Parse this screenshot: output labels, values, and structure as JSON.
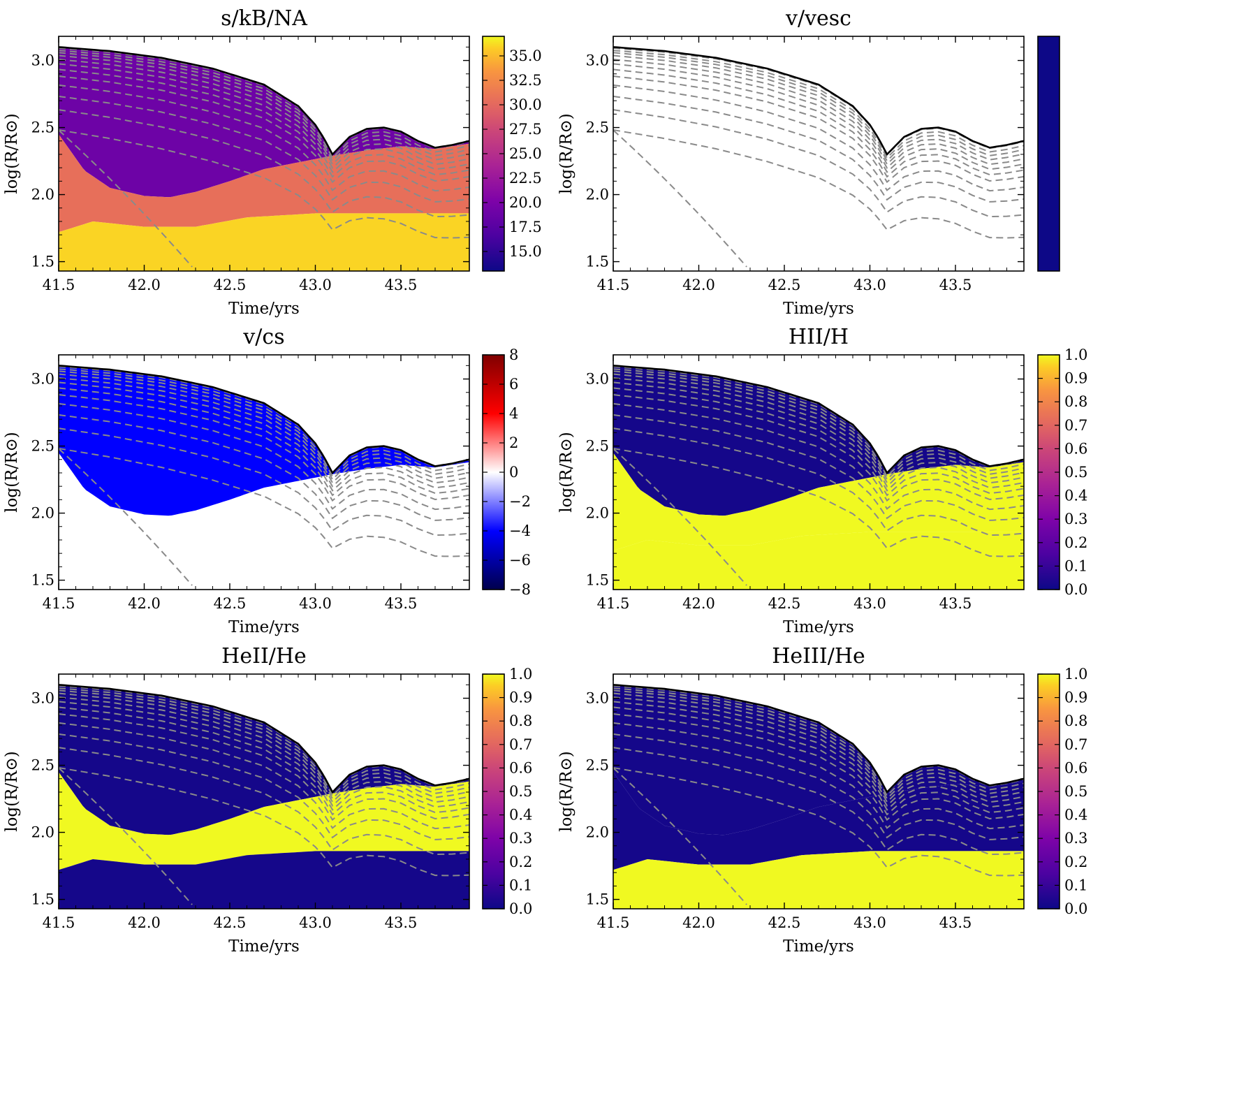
{
  "figure": {
    "xlabel": "Time/yrs",
    "ylabel": "log(R/R⊙)",
    "xlim": [
      41.5,
      43.9
    ],
    "ylim": [
      1.43,
      3.18
    ],
    "xticks": [
      41.5,
      42.0,
      42.5,
      43.0,
      43.5
    ],
    "yticks": [
      1.5,
      2.0,
      2.5,
      3.0
    ]
  },
  "chart_data": [
    {
      "type": "heatmap",
      "title": "s/kB/NA",
      "xlabel": "Time/yrs",
      "ylabel": "log(R/R⊙)",
      "colormap": "plasma",
      "colorbar": {
        "min": 13.0,
        "max": 37.0,
        "ticks": [
          15.0,
          17.5,
          20.0,
          22.5,
          25.0,
          27.5,
          30.0,
          32.5,
          35.0
        ],
        "labels": [
          "15.0",
          "17.5",
          "20.0",
          "22.5",
          "25.0",
          "27.5",
          "30.0",
          "32.5",
          "35.0"
        ]
      },
      "regions": {
        "outer": 19.0,
        "inner": 30.5,
        "core": 36.0
      }
    },
    {
      "type": "heatmap",
      "title": "v/vesc",
      "xlabel": "Time/yrs",
      "ylabel": "log(R/R⊙)",
      "colormap": "plasma",
      "colorbar": {
        "min": 0,
        "max": 1,
        "ticks": [],
        "labels": []
      },
      "regions": {
        "outer": null,
        "inner": null,
        "core": null
      }
    },
    {
      "type": "heatmap",
      "title": "v/cs",
      "xlabel": "Time/yrs",
      "ylabel": "log(R/R⊙)",
      "colormap": "seismic",
      "colorbar": {
        "min": -8,
        "max": 8,
        "ticks": [
          -8,
          -6,
          -4,
          -2,
          0,
          2,
          4,
          6,
          8
        ],
        "labels": [
          "−8",
          "−6",
          "−4",
          "−2",
          "0",
          "2",
          "4",
          "6",
          "8"
        ]
      },
      "regions": {
        "outer": -4.0,
        "inner": null,
        "core": null
      }
    },
    {
      "type": "heatmap",
      "title": "HII/H",
      "xlabel": "Time/yrs",
      "ylabel": "log(R/R⊙)",
      "colormap": "plasma",
      "colorbar": {
        "min": 0.0,
        "max": 1.0,
        "ticks": [
          0.0,
          0.1,
          0.2,
          0.3,
          0.4,
          0.5,
          0.6,
          0.7,
          0.8,
          0.9,
          1.0
        ],
        "labels": [
          "0.0",
          "0.1",
          "0.2",
          "0.3",
          "0.4",
          "0.5",
          "0.6",
          "0.7",
          "0.8",
          "0.9",
          "1.0"
        ]
      },
      "regions": {
        "outer": 0.02,
        "inner": 1.0,
        "core": 1.0
      }
    },
    {
      "type": "heatmap",
      "title": "HeII/He",
      "xlabel": "Time/yrs",
      "ylabel": "log(R/R⊙)",
      "colormap": "plasma",
      "colorbar": {
        "min": 0.0,
        "max": 1.0,
        "ticks": [
          0.0,
          0.1,
          0.2,
          0.3,
          0.4,
          0.5,
          0.6,
          0.7,
          0.8,
          0.9,
          1.0
        ],
        "labels": [
          "0.0",
          "0.1",
          "0.2",
          "0.3",
          "0.4",
          "0.5",
          "0.6",
          "0.7",
          "0.8",
          "0.9",
          "1.0"
        ]
      },
      "regions": {
        "outer": 0.02,
        "inner": 1.0,
        "core": 0.02
      }
    },
    {
      "type": "heatmap",
      "title": "HeIII/He",
      "xlabel": "Time/yrs",
      "ylabel": "log(R/R⊙)",
      "colormap": "plasma",
      "colorbar": {
        "min": 0.0,
        "max": 1.0,
        "ticks": [
          0.0,
          0.1,
          0.2,
          0.3,
          0.4,
          0.5,
          0.6,
          0.7,
          0.8,
          0.9,
          1.0
        ],
        "labels": [
          "0.0",
          "0.1",
          "0.2",
          "0.3",
          "0.4",
          "0.5",
          "0.6",
          "0.7",
          "0.8",
          "0.9",
          "1.0"
        ]
      },
      "regions": {
        "outer": 0.02,
        "inner": 0.02,
        "core": 1.0
      }
    }
  ],
  "surface": {
    "t": [
      41.5,
      41.8,
      42.1,
      42.4,
      42.7,
      42.9,
      43.0,
      43.05,
      43.1,
      43.2,
      43.3,
      43.4,
      43.5,
      43.6,
      43.7,
      43.8,
      43.9
    ],
    "logR": [
      3.1,
      3.07,
      3.02,
      2.94,
      2.82,
      2.66,
      2.52,
      2.42,
      2.3,
      2.43,
      2.49,
      2.5,
      2.47,
      2.4,
      2.35,
      2.37,
      2.4
    ]
  },
  "ionization_front": {
    "t": [
      41.5,
      41.65,
      41.8,
      42.0,
      42.15,
      42.3,
      42.5,
      42.7,
      42.9,
      43.1,
      43.3,
      43.5,
      43.7,
      43.9
    ],
    "logR": [
      2.45,
      2.18,
      2.05,
      1.99,
      1.98,
      2.02,
      2.1,
      2.19,
      2.24,
      2.29,
      2.33,
      2.36,
      2.34,
      2.38
    ]
  },
  "hei_front": {
    "t": [
      41.5,
      41.7,
      42.0,
      42.3,
      42.6,
      43.0,
      43.5,
      43.9
    ],
    "logR": [
      1.72,
      1.8,
      1.76,
      1.76,
      1.83,
      1.86,
      1.86,
      1.86
    ]
  },
  "mass_shells": [
    {
      "f": 0.995,
      "drop": 0.0
    },
    {
      "f": 0.985,
      "drop": 0.02
    },
    {
      "f": 0.975,
      "drop": 0.04
    },
    {
      "f": 0.962,
      "drop": 0.06
    },
    {
      "f": 0.945,
      "drop": 0.08
    },
    {
      "f": 0.925,
      "drop": 0.1
    },
    {
      "f": 0.9,
      "drop": 0.12
    },
    {
      "f": 0.87,
      "drop": 0.14
    },
    {
      "f": 0.83,
      "drop": 0.18
    },
    {
      "f": 0.78,
      "drop": 0.22
    },
    {
      "f": 0.72,
      "drop": 0.28
    },
    {
      "f": 0.63,
      "drop": 0.36
    }
  ]
}
